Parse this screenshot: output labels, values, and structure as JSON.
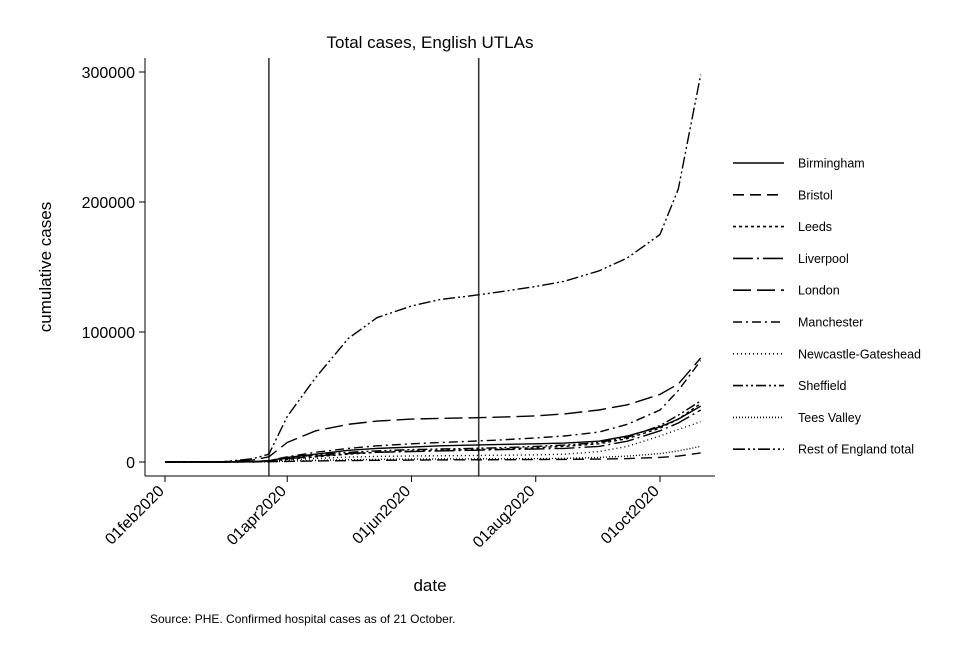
{
  "chart_data": {
    "type": "line",
    "title": "Total cases, English UTLAs",
    "xlabel": "date",
    "ylabel": "cumulative cases",
    "note": "Source: PHE. Confirmed hospital cases as of 21 October.",
    "ylim": [
      0,
      310000
    ],
    "yticks": [
      0,
      100000,
      200000,
      300000
    ],
    "ytick_labels": [
      "0",
      "100000",
      "200000",
      "300000"
    ],
    "xlim": [
      "2020-01-25",
      "2020-10-25"
    ],
    "xticks": [
      "2020-02-01",
      "2020-04-01",
      "2020-06-01",
      "2020-08-01",
      "2020-10-01"
    ],
    "xtick_labels": [
      "01feb2020",
      "01apr2020",
      "01jun2020",
      "01aug2020",
      "01oct2020"
    ],
    "vlines": [
      "2020-03-23",
      "2020-07-04"
    ],
    "grid": false,
    "legend_position": "right",
    "x": [
      "2020-02-01",
      "2020-03-01",
      "2020-03-15",
      "2020-03-23",
      "2020-04-01",
      "2020-04-15",
      "2020-05-01",
      "2020-05-15",
      "2020-06-01",
      "2020-06-15",
      "2020-07-01",
      "2020-07-15",
      "2020-08-01",
      "2020-08-15",
      "2020-09-01",
      "2020-09-15",
      "2020-10-01",
      "2020-10-10",
      "2020-10-21"
    ],
    "series": [
      {
        "name": "Birmingham",
        "dash": "",
        "values": [
          0,
          20,
          300,
          1000,
          3500,
          6000,
          9000,
          10500,
          11500,
          12500,
          13000,
          13500,
          14000,
          14500,
          16000,
          20000,
          27000,
          33000,
          43000
        ]
      },
      {
        "name": "Bristol",
        "dash": "11,6",
        "values": [
          0,
          5,
          60,
          200,
          500,
          800,
          1100,
          1300,
          1500,
          1600,
          1700,
          1800,
          1900,
          2000,
          2200,
          2600,
          3500,
          4500,
          7000
        ]
      },
      {
        "name": "Leeds",
        "dash": "3,3",
        "values": [
          0,
          10,
          150,
          600,
          2000,
          4000,
          6000,
          7500,
          8500,
          9000,
          9500,
          10000,
          11000,
          12000,
          14000,
          18000,
          26000,
          33000,
          45000
        ]
      },
      {
        "name": "Liverpool",
        "dash": "20,4,2,4",
        "values": [
          0,
          10,
          200,
          700,
          2500,
          4500,
          6500,
          7500,
          8000,
          8500,
          9000,
          9500,
          10000,
          10500,
          12000,
          16000,
          24000,
          30000,
          40000
        ]
      },
      {
        "name": "London",
        "dash": "18,6",
        "values": [
          0,
          200,
          1500,
          4000,
          15000,
          24000,
          29000,
          31500,
          33000,
          33500,
          34000,
          34500,
          35500,
          37000,
          40000,
          44000,
          52000,
          60000,
          80000
        ]
      },
      {
        "name": "Manchester",
        "dash": "9,4,2,4",
        "values": [
          0,
          20,
          300,
          1000,
          4000,
          7500,
          10500,
          12500,
          14000,
          15000,
          16000,
          17000,
          18500,
          20000,
          23000,
          29000,
          40000,
          55000,
          78000
        ]
      },
      {
        "name": "Newcastle-Gateshead",
        "dash": "1,3",
        "values": [
          0,
          5,
          100,
          400,
          1500,
          2800,
          3800,
          4300,
          4600,
          4800,
          5000,
          5200,
          5500,
          6000,
          8000,
          12000,
          20000,
          25000,
          31000
        ]
      },
      {
        "name": "Sheffield",
        "dash": "10,3,2,3,2,3",
        "values": [
          0,
          10,
          200,
          700,
          3000,
          5500,
          7500,
          8500,
          9500,
          10000,
          10500,
          11000,
          12000,
          13000,
          15000,
          19000,
          28000,
          36000,
          47000
        ]
      },
      {
        "name": "Tees Valley",
        "dash": "1,2",
        "values": [
          0,
          5,
          60,
          200,
          700,
          1200,
          1700,
          2000,
          2200,
          2300,
          2400,
          2500,
          2600,
          2800,
          3500,
          4500,
          6500,
          8500,
          12000
        ]
      },
      {
        "name": "Rest of England total",
        "dash": "12,3,2,3,2,3",
        "values": [
          0,
          300,
          2500,
          6000,
          35000,
          65000,
          95000,
          111000,
          120000,
          125000,
          128000,
          131000,
          135000,
          139000,
          147000,
          157000,
          175000,
          210000,
          298000
        ]
      }
    ]
  }
}
